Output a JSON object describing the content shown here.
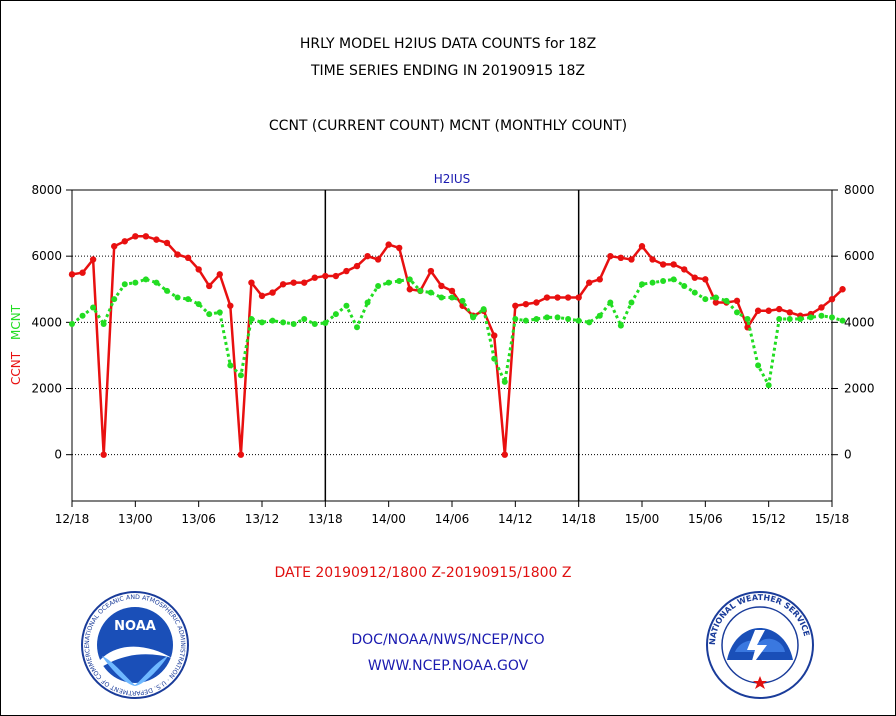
{
  "header": {
    "title_line1": "HRLY MODEL H2IUS DATA COUNTS for 18Z",
    "title_line2": "TIME SERIES ENDING IN 20190915 18Z",
    "title_line3": "CCNT (CURRENT COUNT) MCNT (MONTHLY COUNT)"
  },
  "chart_data": {
    "type": "line",
    "title": "H2IUS",
    "ylabel_left_ccnt": "CCNT",
    "ylabel_left_mcnt": "MCNT",
    "ylim": [
      -1400,
      8000
    ],
    "y_ticks": [
      "8000",
      "6000",
      "4000",
      "2000",
      "0"
    ],
    "x_ticks": [
      "12/18",
      "13/00",
      "13/06",
      "13/12",
      "13/18",
      "14/00",
      "14/06",
      "14/12",
      "14/18",
      "15/00",
      "15/06",
      "15/12",
      "15/18"
    ],
    "day_separators_hours": [
      24,
      48
    ],
    "grid": "horizontal dotted at 0, 2000, 4000, 6000",
    "x_hours_range": [
      0,
      72
    ],
    "series": [
      {
        "name": "CCNT",
        "color": "#e81010",
        "style": "solid",
        "values": [
          5450,
          5500,
          5900,
          0,
          6300,
          6450,
          6600,
          6600,
          6500,
          6400,
          6050,
          5950,
          5600,
          5100,
          5450,
          4500,
          0,
          5200,
          4800,
          4900,
          5150,
          5200,
          5200,
          5350,
          5400,
          5400,
          5550,
          5700,
          6000,
          5900,
          6350,
          6250,
          5000,
          4950,
          5550,
          5100,
          4950,
          4500,
          4200,
          4350,
          3600,
          0,
          4500,
          4550,
          4600,
          4750,
          4750,
          4750,
          4750,
          5200,
          5300,
          6000,
          5950,
          5900,
          6300,
          5900,
          5750,
          5750,
          5600,
          5350,
          5300,
          4600,
          4600,
          4650,
          3850,
          4350,
          4350,
          4400,
          4300,
          4200,
          4250,
          4450,
          4700,
          5000
        ]
      },
      {
        "name": "MCNT",
        "color": "#22dd22",
        "style": "dotted",
        "values": [
          3950,
          4200,
          4450,
          3950,
          4700,
          5150,
          5200,
          5300,
          5200,
          4950,
          4750,
          4700,
          4550,
          4250,
          4300,
          2700,
          2400,
          4100,
          4000,
          4050,
          4000,
          3950,
          4100,
          3950,
          3980,
          4250,
          4500,
          3850,
          4600,
          5100,
          5200,
          5250,
          5300,
          4950,
          4900,
          4750,
          4750,
          4650,
          4150,
          4400,
          2900,
          2200,
          4100,
          4050,
          4100,
          4150,
          4150,
          4100,
          4050,
          4000,
          4200,
          4600,
          3900,
          4600,
          5150,
          5200,
          5250,
          5300,
          5100,
          4900,
          4700,
          4750,
          4650,
          4300,
          4100,
          2700,
          2100,
          4100,
          4100,
          4100,
          4150,
          4200,
          4150,
          4050
        ]
      }
    ],
    "xlabel": "DATE 20190912/1800 Z-20190915/1800 Z"
  },
  "footer": {
    "agency": "DOC/NOAA/NWS/NCEP/NCO",
    "website": "WWW.NCEP.NOAA.GOV",
    "noaa_logo_text": "NOAA",
    "noaa_ring_text": "NATIONAL OCEANIC AND ATMOSPHERIC ADMINISTRATION · U.S. DEPARTMENT OF COMMERCE",
    "nws_ring_text": "NATIONAL WEATHER SERVICE"
  }
}
